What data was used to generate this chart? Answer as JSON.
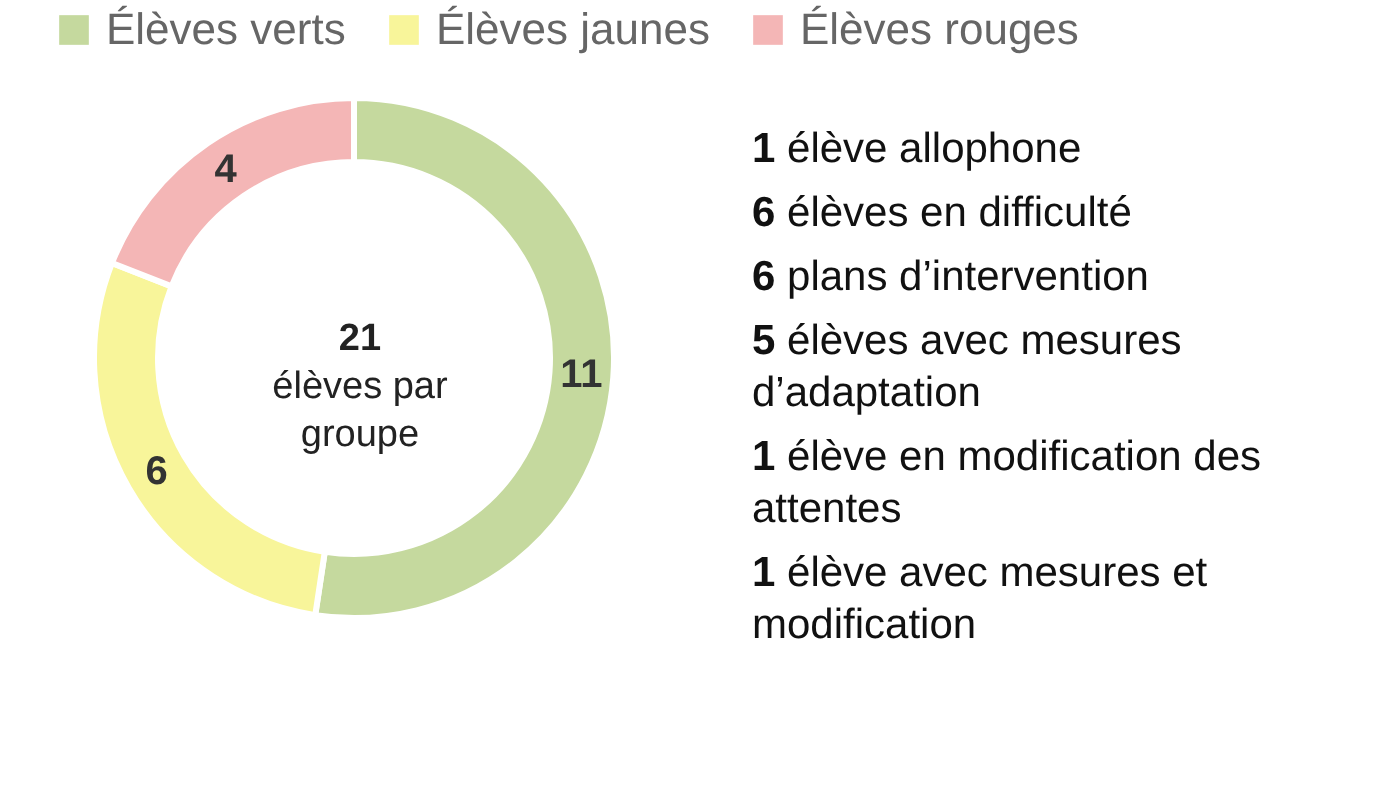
{
  "chart_data": {
    "type": "donut",
    "categories": [
      "Élèves verts",
      "Élèves jaunes",
      "Élèves rouges"
    ],
    "values": [
      11,
      6,
      4
    ],
    "colors": [
      "#c5d99e",
      "#f8f59a",
      "#f4b6b6"
    ],
    "data_labels": true,
    "legend": "top",
    "annotations": [
      "21 élèves par groupe",
      "1 élève allophone",
      "6 élèves en difficulté",
      "6 plans d’intervention",
      "5 élèves avec mesures d’adaptation",
      "1 élève en modification des attentes",
      "1 élève avec mesures et modification"
    ]
  }
}
